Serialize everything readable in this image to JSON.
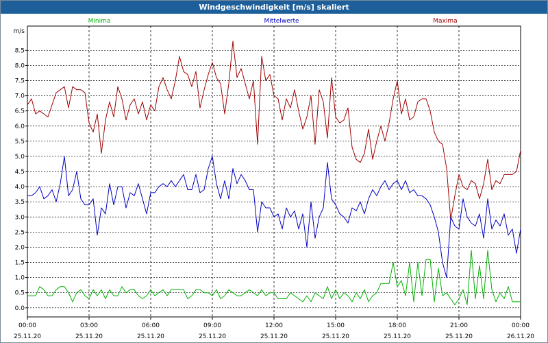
{
  "window": {
    "title": "Windgeschwindigkeit [m/s] skaliert"
  },
  "colors": {
    "min": "#00b000",
    "mean": "#0000c0",
    "max": "#a00000",
    "grid": "#000000",
    "title_bg": "#1d5f9a"
  },
  "chart_data": {
    "type": "line",
    "title": "Windgeschwindigkeit [m/s] skaliert",
    "ylabel": "m/s",
    "ylim": [
      -0.3,
      9.3
    ],
    "yticks": [
      "0.0",
      "0.5",
      "1.0",
      "1.5",
      "2.0",
      "2.5",
      "3.0",
      "3.5",
      "4.0",
      "4.5",
      "5.0",
      "5.5",
      "6.0",
      "6.5",
      "7.0",
      "7.5",
      "8.0",
      "8.5"
    ],
    "x_tick_times": [
      "00:00",
      "03:00",
      "06:00",
      "09:00",
      "12:00",
      "15:00",
      "18:00",
      "21:00",
      "00:00"
    ],
    "x_tick_dates": [
      "25.11.20",
      "25.11.20",
      "25.11.20",
      "25.11.20",
      "25.11.20",
      "25.11.20",
      "25.11.20",
      "25.11.20",
      "26.11.20"
    ],
    "x_range_hours": [
      0,
      24
    ],
    "grid": true,
    "legend_position": "top",
    "series": [
      {
        "name": "Maxima",
        "color": "#a00000",
        "x_hours": [
          0,
          0.2,
          0.4,
          0.6,
          0.8,
          1,
          1.2,
          1.4,
          1.6,
          1.8,
          2,
          2.2,
          2.4,
          2.6,
          2.8,
          3,
          3.2,
          3.4,
          3.6,
          3.8,
          4,
          4.2,
          4.4,
          4.6,
          4.8,
          5,
          5.2,
          5.4,
          5.6,
          5.8,
          6,
          6.2,
          6.4,
          6.6,
          6.8,
          7,
          7.2,
          7.4,
          7.6,
          7.8,
          8,
          8.2,
          8.4,
          8.6,
          8.8,
          9,
          9.2,
          9.4,
          9.6,
          9.8,
          10,
          10.2,
          10.4,
          10.6,
          10.8,
          11,
          11.2,
          11.4,
          11.6,
          11.8,
          12,
          12.2,
          12.4,
          12.6,
          12.8,
          13,
          13.2,
          13.4,
          13.6,
          13.8,
          14,
          14.2,
          14.4,
          14.6,
          14.8,
          15,
          15.2,
          15.4,
          15.6,
          15.8,
          16,
          16.2,
          16.4,
          16.6,
          16.8,
          17,
          17.2,
          17.4,
          17.6,
          17.8,
          18,
          18.2,
          18.4,
          18.6,
          18.8,
          19,
          19.2,
          19.4,
          19.6,
          19.8,
          20,
          20.2,
          20.4,
          20.6,
          20.8,
          21,
          21.2,
          21.4,
          21.6,
          21.8,
          22,
          22.2,
          22.4,
          22.6,
          22.8,
          23,
          23.2,
          23.4,
          23.6,
          23.8,
          24
        ],
        "values": [
          6.7,
          6.9,
          6.4,
          6.5,
          6.4,
          6.3,
          6.7,
          7.1,
          7.2,
          7.3,
          6.6,
          7.3,
          7.2,
          7.2,
          7.1,
          6.1,
          5.8,
          6.4,
          5.1,
          6.2,
          6.8,
          6.3,
          7.3,
          6.9,
          6.2,
          6.7,
          6.9,
          6.4,
          6.8,
          6.2,
          6.7,
          6.5,
          7.3,
          7.6,
          7.2,
          6.9,
          7.5,
          8.3,
          7.8,
          7.7,
          7.3,
          7.8,
          6.6,
          7.2,
          7.7,
          8.1,
          7.6,
          7.4,
          6.4,
          7.4,
          8.8,
          7.6,
          7.9,
          7.4,
          6.9,
          7.5,
          5.4,
          8.3,
          7.5,
          7.7,
          7.0,
          6.9,
          6.2,
          6.9,
          6.6,
          7.2,
          6.5,
          5.9,
          6.3,
          7.0,
          5.4,
          7.2,
          6.8,
          5.6,
          7.6,
          6.3,
          6.1,
          6.2,
          6.6,
          5.3,
          4.9,
          4.8,
          5.1,
          5.9,
          4.9,
          5.5,
          6.0,
          5.5,
          6.1,
          6.9,
          7.5,
          6.4,
          6.9,
          6.2,
          6.3,
          6.8,
          6.9,
          6.9,
          6.5,
          5.8,
          5.5,
          5.4,
          4.6,
          2.9,
          3.7,
          4.4,
          4.0,
          3.9,
          4.2,
          4.1,
          3.6,
          4.1,
          4.9,
          3.9,
          4.2,
          4.1,
          4.4,
          4.4,
          4.4,
          4.5,
          5.2
        ]
      },
      {
        "name": "Mittelwerte",
        "color": "#0000c0",
        "x_hours": [
          0,
          0.2,
          0.4,
          0.6,
          0.8,
          1,
          1.2,
          1.4,
          1.6,
          1.8,
          2,
          2.2,
          2.4,
          2.6,
          2.8,
          3,
          3.2,
          3.4,
          3.6,
          3.8,
          4,
          4.2,
          4.4,
          4.6,
          4.8,
          5,
          5.2,
          5.4,
          5.6,
          5.8,
          6,
          6.2,
          6.4,
          6.6,
          6.8,
          7,
          7.2,
          7.4,
          7.6,
          7.8,
          8,
          8.2,
          8.4,
          8.6,
          8.8,
          9,
          9.2,
          9.4,
          9.6,
          9.8,
          10,
          10.2,
          10.4,
          10.6,
          10.8,
          11,
          11.2,
          11.4,
          11.6,
          11.8,
          12,
          12.2,
          12.4,
          12.6,
          12.8,
          13,
          13.2,
          13.4,
          13.6,
          13.8,
          14,
          14.2,
          14.4,
          14.6,
          14.8,
          15,
          15.2,
          15.4,
          15.6,
          15.8,
          16,
          16.2,
          16.4,
          16.6,
          16.8,
          17,
          17.2,
          17.4,
          17.6,
          17.8,
          18,
          18.2,
          18.4,
          18.6,
          18.8,
          19,
          19.2,
          19.4,
          19.6,
          19.8,
          20,
          20.2,
          20.4,
          20.6,
          20.8,
          21,
          21.2,
          21.4,
          21.6,
          21.8,
          22,
          22.2,
          22.4,
          22.6,
          22.8,
          23,
          23.2,
          23.4,
          23.6,
          23.8,
          24
        ],
        "values": [
          3.7,
          3.7,
          3.8,
          4.0,
          3.6,
          3.7,
          3.9,
          3.5,
          4.1,
          5.0,
          3.7,
          3.9,
          4.5,
          3.6,
          3.4,
          3.4,
          3.6,
          2.4,
          3.3,
          3.1,
          4.1,
          3.4,
          4.0,
          4.0,
          3.3,
          3.8,
          3.7,
          4.1,
          3.6,
          3.1,
          3.8,
          3.8,
          4.0,
          4.1,
          4.0,
          4.2,
          4.0,
          4.2,
          4.4,
          3.9,
          3.9,
          4.4,
          3.8,
          3.9,
          4.6,
          5.0,
          4.1,
          3.6,
          4.2,
          3.6,
          4.6,
          4.1,
          4.4,
          4.2,
          3.9,
          3.9,
          2.5,
          3.5,
          3.3,
          3.3,
          3.0,
          3.1,
          2.6,
          3.3,
          3.0,
          3.2,
          2.6,
          3.1,
          2.0,
          3.5,
          2.3,
          3.0,
          3.3,
          4.8,
          3.6,
          3.4,
          3.1,
          3.0,
          2.8,
          3.3,
          3.2,
          3.5,
          3.1,
          3.6,
          3.9,
          3.7,
          4.0,
          4.2,
          3.9,
          4.1,
          4.2,
          3.9,
          4.2,
          3.8,
          3.9,
          3.7,
          3.7,
          3.6,
          3.4,
          3.0,
          2.5,
          1.5,
          1.0,
          3.0,
          2.7,
          2.6,
          3.6,
          3.0,
          2.8,
          2.7,
          3.1,
          2.3,
          3.6,
          2.6,
          2.9,
          2.7,
          3.1,
          2.4,
          2.6,
          1.8,
          2.6
        ]
      },
      {
        "name": "Minima",
        "color": "#00b000",
        "x_hours": [
          0,
          0.2,
          0.4,
          0.6,
          0.8,
          1,
          1.2,
          1.4,
          1.6,
          1.8,
          2,
          2.2,
          2.4,
          2.6,
          2.8,
          3,
          3.2,
          3.4,
          3.6,
          3.8,
          4,
          4.2,
          4.4,
          4.6,
          4.8,
          5,
          5.2,
          5.4,
          5.6,
          5.8,
          6,
          6.2,
          6.4,
          6.6,
          6.8,
          7,
          7.2,
          7.4,
          7.6,
          7.8,
          8,
          8.2,
          8.4,
          8.6,
          8.8,
          9,
          9.2,
          9.4,
          9.6,
          9.8,
          10,
          10.2,
          10.4,
          10.6,
          10.8,
          11,
          11.2,
          11.4,
          11.6,
          11.8,
          12,
          12.2,
          12.4,
          12.6,
          12.8,
          13,
          13.2,
          13.4,
          13.6,
          13.8,
          14,
          14.2,
          14.4,
          14.6,
          14.8,
          15,
          15.2,
          15.4,
          15.6,
          15.8,
          16,
          16.2,
          16.4,
          16.6,
          16.8,
          17,
          17.2,
          17.4,
          17.6,
          17.8,
          18,
          18.2,
          18.4,
          18.6,
          18.8,
          19,
          19.2,
          19.4,
          19.6,
          19.8,
          20,
          20.2,
          20.4,
          20.6,
          20.8,
          21,
          21.2,
          21.4,
          21.6,
          21.8,
          22,
          22.2,
          22.4,
          22.6,
          22.8,
          23,
          23.2,
          23.4,
          23.6,
          23.8,
          24
        ],
        "values": [
          0.4,
          0.4,
          0.4,
          0.7,
          0.6,
          0.4,
          0.4,
          0.6,
          0.7,
          0.7,
          0.5,
          0.2,
          0.5,
          0.6,
          0.4,
          0.3,
          0.6,
          0.4,
          0.6,
          0.3,
          0.6,
          0.4,
          0.4,
          0.7,
          0.5,
          0.6,
          0.6,
          0.4,
          0.3,
          0.4,
          0.6,
          0.4,
          0.5,
          0.6,
          0.4,
          0.6,
          0.6,
          0.6,
          0.6,
          0.3,
          0.4,
          0.6,
          0.6,
          0.5,
          0.5,
          0.4,
          0.6,
          0.3,
          0.4,
          0.6,
          0.5,
          0.4,
          0.4,
          0.5,
          0.6,
          0.5,
          0.4,
          0.6,
          0.4,
          0.5,
          0.5,
          0.3,
          0.3,
          0.3,
          0.5,
          0.4,
          0.3,
          0.2,
          0.4,
          0.2,
          0.5,
          0.4,
          0.3,
          0.7,
          0.3,
          0.6,
          0.3,
          0.5,
          0.4,
          0.2,
          0.5,
          0.3,
          0.6,
          0.2,
          0.4,
          0.5,
          0.8,
          0.8,
          0.8,
          1.5,
          0.7,
          0.9,
          0.4,
          1.5,
          0.2,
          1.5,
          0.4,
          1.6,
          1.6,
          0.2,
          1.3,
          0.4,
          0.5,
          0.3,
          0.1,
          0.3,
          0.6,
          0.1,
          1.9,
          0.3,
          1.4,
          0.3,
          1.9,
          0.6,
          0.2,
          0.5,
          0.3,
          0.7,
          0.2,
          0.2,
          0.2
        ]
      }
    ]
  }
}
